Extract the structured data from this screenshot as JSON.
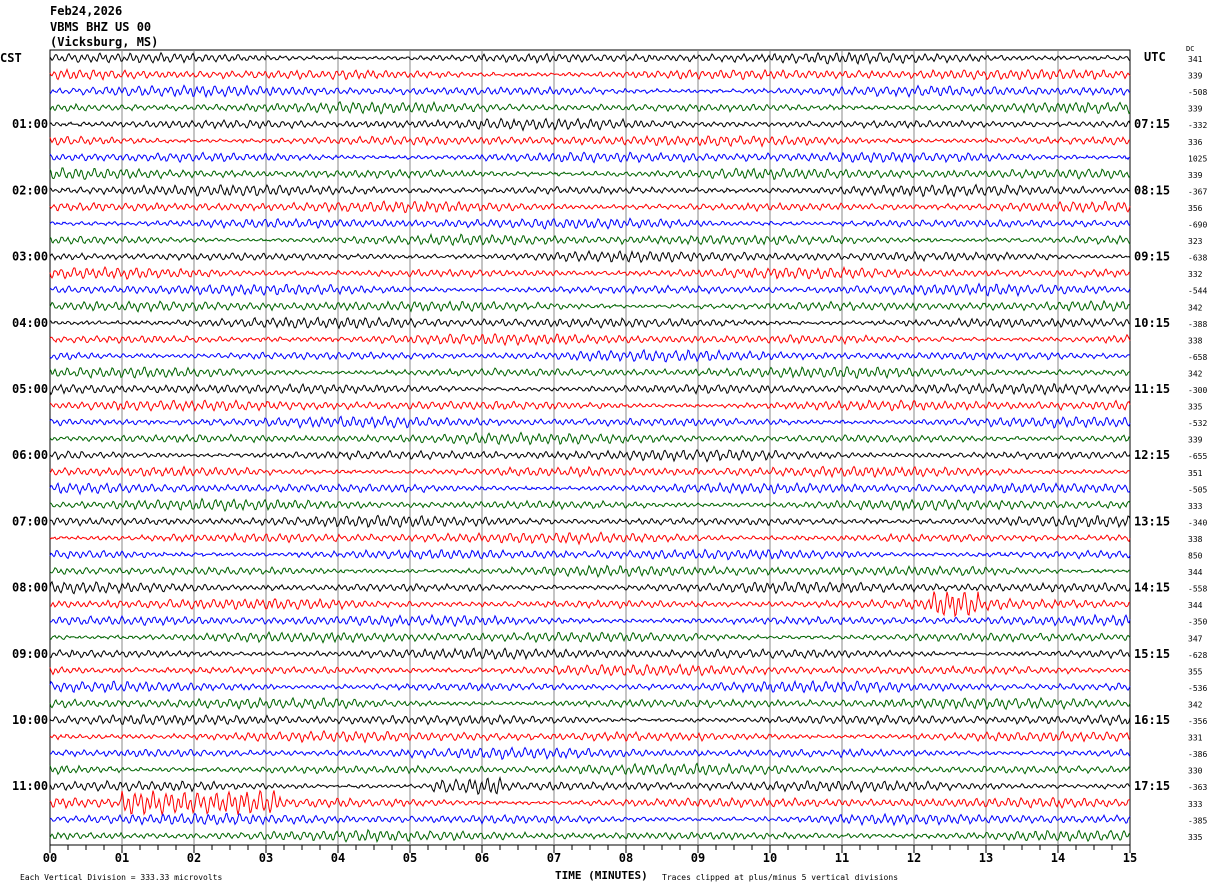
{
  "header": {
    "date": "Feb24,2026",
    "station": "VBMS BHZ US 00",
    "location": "(Vicksburg, MS)"
  },
  "left_tz": "CST",
  "right_tz": "UTC",
  "dc_label": "DC",
  "footer": {
    "scale": "Each Vertical Division =  333.33 microvolts",
    "xlabel": "TIME (MINUTES)",
    "clip_note": "Traces clipped at plus/minus 5 vertical divisions"
  },
  "chart_data": {
    "type": "line",
    "xlabel": "TIME (MINUTES)",
    "xlim": [
      0,
      15
    ],
    "x_ticks": [
      "00",
      "01",
      "02",
      "03",
      "04",
      "05",
      "06",
      "07",
      "08",
      "09",
      "10",
      "11",
      "12",
      "13",
      "14",
      "15"
    ],
    "grid": true,
    "trace_minutes": 15,
    "trace_colors": [
      "#000000",
      "#ff0000",
      "#0000ff",
      "#006400"
    ],
    "left_hour_labels": [
      "CST",
      "01:00",
      "02:00",
      "03:00",
      "04:00",
      "05:00",
      "06:00",
      "07:00",
      "08:00",
      "09:00",
      "10:00",
      "11:00"
    ],
    "right_hour_labels": [
      "",
      "07:15",
      "08:15",
      "09:15",
      "10:15",
      "11:15",
      "12:15",
      "13:15",
      "14:15",
      "15:15",
      "16:15",
      "17:15"
    ],
    "dc_offsets": [
      341,
      339,
      -508,
      339,
      -332,
      336,
      1025,
      339,
      -367,
      356,
      -690,
      323,
      -638,
      332,
      -544,
      342,
      -388,
      338,
      -658,
      342,
      -300,
      335,
      -532,
      339,
      -655,
      351,
      -505,
      333,
      -340,
      338,
      850,
      344,
      -558,
      344,
      -350,
      347,
      -628,
      355,
      -536,
      342,
      -356,
      331,
      -386,
      330,
      -363,
      333,
      -385,
      335
    ],
    "events": [
      {
        "trace": 45,
        "start_min": 1.0,
        "end_min": 3.2,
        "amplitude": "large"
      },
      {
        "trace": 44,
        "start_min": 5.3,
        "end_min": 6.3,
        "amplitude": "medium"
      },
      {
        "trace": 33,
        "start_min": 12.2,
        "end_min": 12.9,
        "amplitude": "medium"
      }
    ]
  }
}
